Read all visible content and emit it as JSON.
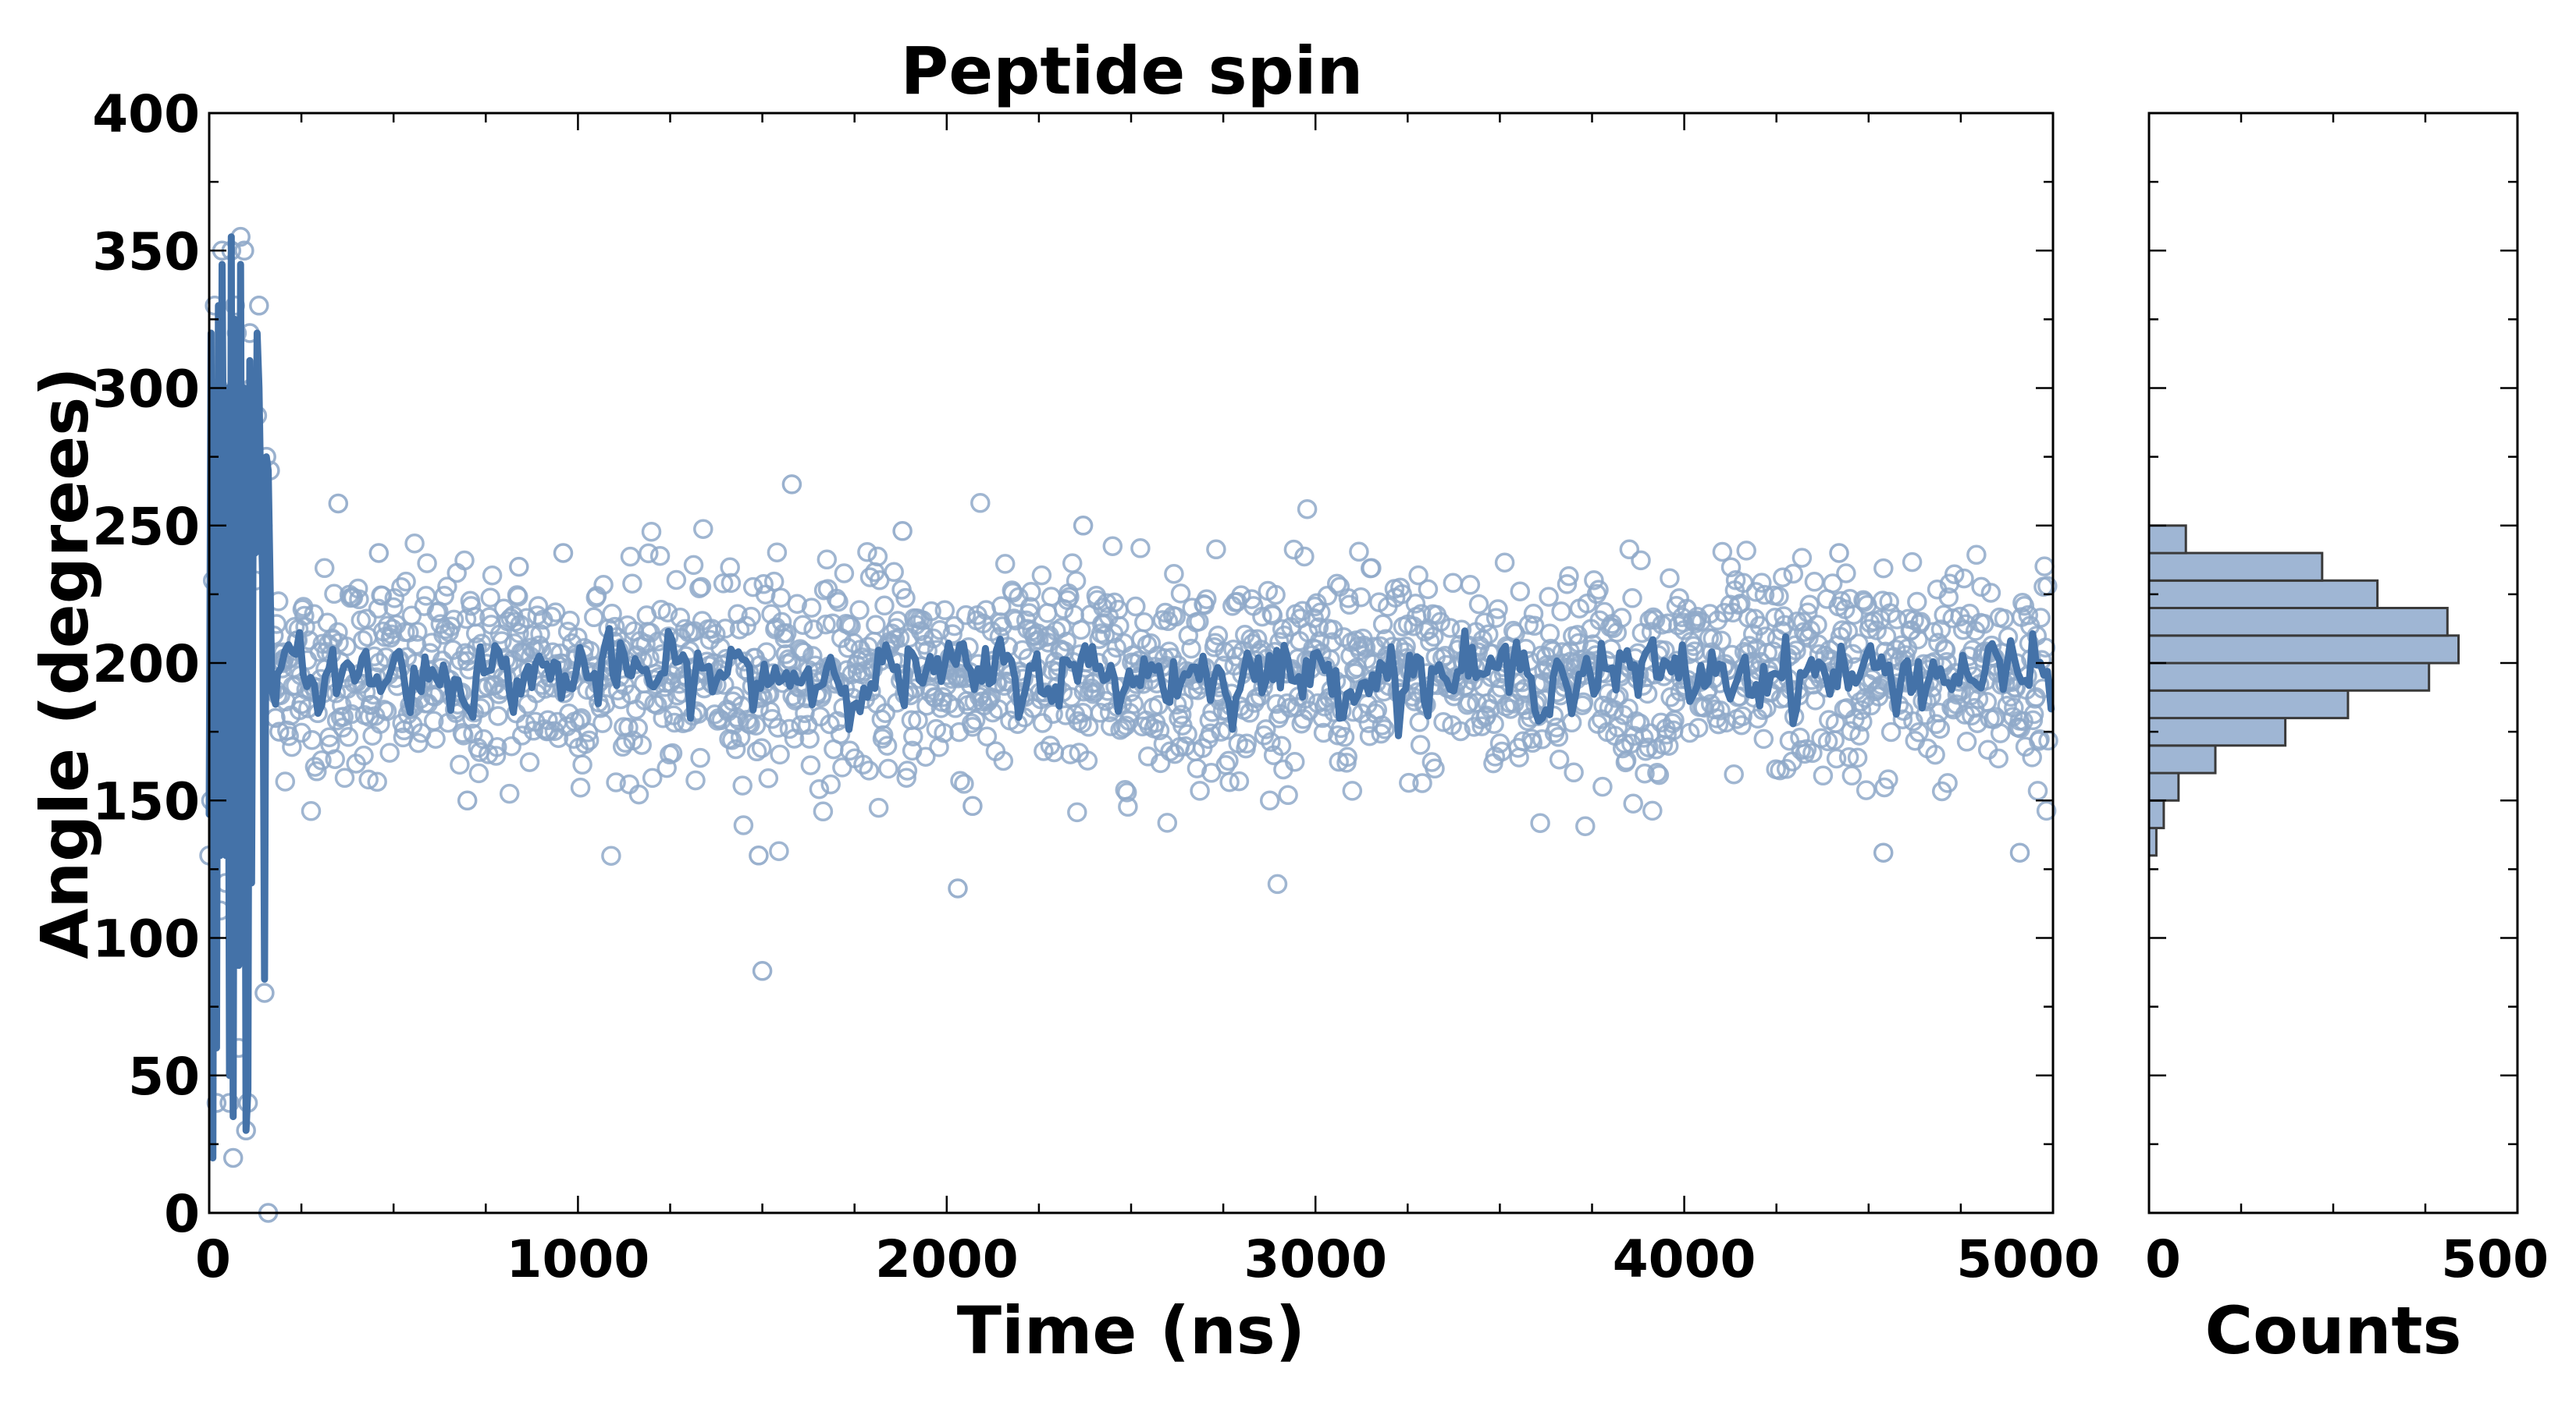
{
  "chart_data": [
    {
      "type": "scatter",
      "title": "Peptide spin",
      "xlabel": "Time (ns)",
      "ylabel": "Angle (degrees)",
      "xlim": [
        0,
        5000
      ],
      "ylim": [
        0,
        400
      ],
      "x_ticks": [
        0,
        1000,
        2000,
        3000,
        4000,
        5000
      ],
      "y_ticks": [
        0,
        50,
        100,
        150,
        200,
        250,
        300,
        350,
        400
      ],
      "grid": false,
      "colors": {
        "points": "#8fa9c9",
        "line": "#4472a8"
      },
      "series": [
        {
          "style": "open circles",
          "x": [
            0,
            5,
            10,
            15,
            20,
            25,
            30,
            35,
            40,
            45,
            50,
            55,
            60,
            65,
            70,
            75,
            80,
            85,
            90,
            95,
            100,
            105,
            110,
            115,
            120,
            125,
            130,
            135,
            140,
            145,
            150,
            155,
            160,
            165,
            170,
            175,
            180,
            190,
            200,
            250,
            350,
            460,
            700,
            840,
            960,
            1490,
            1500,
            1580,
            1880,
            2030,
            2070,
            2370,
            4420,
            4540,
            4910
          ],
          "y": [
            130,
            150,
            230,
            330,
            40,
            300,
            110,
            350,
            250,
            120,
            290,
            40,
            350,
            20,
            330,
            320,
            60,
            355,
            250,
            350,
            30,
            40,
            320,
            300,
            260,
            230,
            290,
            330,
            270,
            250,
            80,
            275,
            0,
            270,
            190,
            210,
            180,
            175,
            200,
            185,
            258,
            240,
            150,
            235,
            240,
            130,
            88,
            265,
            248,
            118,
            148,
            250,
            240,
            131,
            131
          ]
        },
        {
          "style": "line",
          "x": [
            0,
            5,
            10,
            15,
            20,
            25,
            30,
            35,
            40,
            45,
            50,
            55,
            60,
            65,
            70,
            75,
            80,
            85,
            90,
            95,
            100,
            105,
            110,
            115,
            120,
            125,
            130,
            135,
            140,
            145,
            150,
            155,
            160,
            170,
            180,
            200,
            250,
            300,
            400,
            500,
            600,
            700,
            800,
            900,
            1000,
            1200,
            1400,
            1600,
            1800,
            2000,
            2200,
            2400,
            2600,
            2800,
            3000,
            3200,
            3400,
            3600,
            3800,
            4000,
            4200,
            4400,
            4600,
            4800,
            4900,
            5000
          ],
          "y": [
            145,
            320,
            20,
            300,
            60,
            330,
            130,
            345,
            240,
            130,
            300,
            50,
            355,
            35,
            325,
            310,
            90,
            345,
            135,
            300,
            30,
            45,
            310,
            120,
            280,
            240,
            320,
            300,
            260,
            230,
            85,
            275,
            270,
            190,
            185,
            190,
            195,
            193,
            200,
            198,
            192,
            195,
            197,
            196,
            205,
            193,
            198,
            202,
            195,
            196,
            200,
            205,
            193,
            196,
            198,
            195,
            200,
            194,
            199,
            196,
            201,
            195,
            197,
            193,
            200,
            195
          ]
        }
      ]
    },
    {
      "type": "bar",
      "orientation": "horizontal",
      "xlabel": "Counts",
      "xlim": [
        0,
        500
      ],
      "ylim": [
        0,
        400
      ],
      "x_ticks": [
        0,
        500
      ],
      "colors": {
        "bars": "#9fb6d4",
        "edge": "#3a3a3a"
      },
      "bin_width": 10,
      "bins": [
        130,
        140,
        150,
        160,
        170,
        180,
        190,
        200,
        210,
        220,
        230,
        240
      ],
      "counts": [
        10,
        20,
        40,
        90,
        185,
        270,
        380,
        420,
        405,
        310,
        235,
        50
      ]
    }
  ]
}
